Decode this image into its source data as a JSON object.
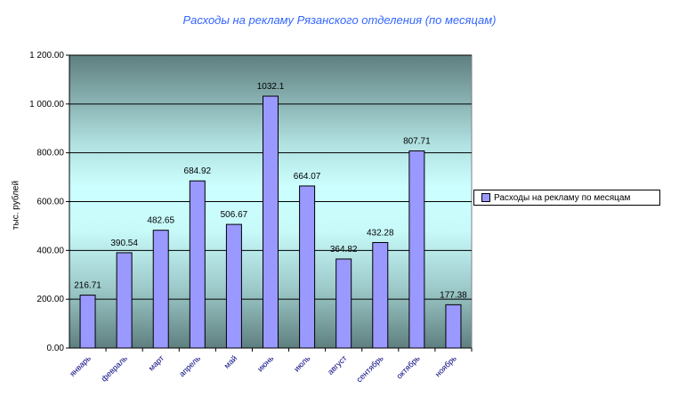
{
  "chart_data": {
    "type": "bar",
    "title": "Расходы на рекламу Рязанского отделения (по месяцам)",
    "xlabel": "",
    "ylabel": "тыс. рублей",
    "categories": [
      "январь",
      "февраль",
      "март",
      "апрель",
      "май",
      "июнь",
      "июль",
      "август",
      "сентябрь",
      "октябрь",
      "ноябрь"
    ],
    "series": [
      {
        "name": "Расходы на рекламу по месяцам",
        "values": [
          216.71,
          390.54,
          482.65,
          684.92,
          506.67,
          1032.1,
          664.07,
          364.82,
          432.28,
          807.71,
          177.38
        ]
      }
    ],
    "data_labels": [
      "216.71",
      "390.54",
      "482.65",
      "684.92",
      "506.67",
      "1032.1",
      "664.07",
      "364.82",
      "432.28",
      "807.71",
      "177.38"
    ],
    "ylim": [
      0,
      1200
    ],
    "yticks": [
      "0.00",
      "200.00",
      "400.00",
      "600.00",
      "800.00",
      "1 000.00",
      "1 200.00"
    ],
    "grid": true,
    "legend_position": "right",
    "colors": {
      "bar": "#9999ff",
      "title": "#3366ff",
      "xticks": "#000080",
      "plot_bg_dark": "#5f7f7f",
      "plot_bg_light": "#ccffff"
    }
  }
}
